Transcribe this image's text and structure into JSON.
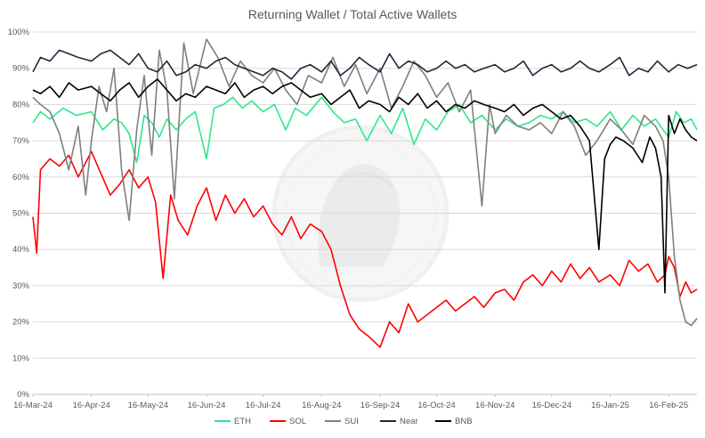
{
  "chart_data": {
    "type": "line",
    "title": "Returning Wallet / Total Active Wallets",
    "xlabel": "",
    "ylabel": "",
    "ylim": [
      0,
      100
    ],
    "y_ticks": [
      "0%",
      "10%",
      "20%",
      "30%",
      "40%",
      "50%",
      "60%",
      "70%",
      "80%",
      "90%",
      "100%"
    ],
    "x_tick_labels": [
      "16-Mar-24",
      "16-Apr-24",
      "16-May-24",
      "16-Jun-24",
      "16-Jul-24",
      "16-Aug-24",
      "16-Sep-24",
      "16-Oct-24",
      "16-Nov-24",
      "16-Dec-24",
      "16-Jan-25",
      "16-Feb-25"
    ],
    "x_tick_dates": [
      "2024-03-16",
      "2024-04-16",
      "2024-05-16",
      "2024-06-16",
      "2024-07-16",
      "2024-08-16",
      "2024-09-16",
      "2024-10-16",
      "2024-11-16",
      "2024-12-16",
      "2025-01-16",
      "2025-02-16"
    ],
    "x_range": [
      "2024-03-16",
      "2025-03-03"
    ],
    "grid": true,
    "legend_position": "bottom",
    "series": [
      {
        "name": "ETH",
        "color": "#2ee88a",
        "x": [
          "2024-03-16",
          "2024-03-20",
          "2024-03-25",
          "2024-04-01",
          "2024-04-08",
          "2024-04-16",
          "2024-04-22",
          "2024-04-28",
          "2024-05-02",
          "2024-05-06",
          "2024-05-10",
          "2024-05-14",
          "2024-05-18",
          "2024-05-22",
          "2024-05-26",
          "2024-05-31",
          "2024-06-05",
          "2024-06-10",
          "2024-06-16",
          "2024-06-20",
          "2024-06-25",
          "2024-06-30",
          "2024-07-05",
          "2024-07-10",
          "2024-07-16",
          "2024-07-22",
          "2024-07-28",
          "2024-08-02",
          "2024-08-08",
          "2024-08-16",
          "2024-08-22",
          "2024-08-28",
          "2024-09-03",
          "2024-09-09",
          "2024-09-16",
          "2024-09-22",
          "2024-09-28",
          "2024-10-04",
          "2024-10-10",
          "2024-10-16",
          "2024-10-22",
          "2024-10-28",
          "2024-11-03",
          "2024-11-09",
          "2024-11-16",
          "2024-11-22",
          "2024-11-28",
          "2024-12-04",
          "2024-12-10",
          "2024-12-16",
          "2024-12-22",
          "2024-12-28",
          "2025-01-03",
          "2025-01-09",
          "2025-01-16",
          "2025-01-22",
          "2025-01-28",
          "2025-02-03",
          "2025-02-09",
          "2025-02-13",
          "2025-02-16",
          "2025-02-20",
          "2025-02-24",
          "2025-02-28",
          "2025-03-03"
        ],
        "values": [
          75,
          78,
          76,
          79,
          77,
          78,
          73,
          76,
          75,
          72,
          64,
          77,
          75,
          71,
          76,
          73,
          76,
          78,
          65,
          79,
          80,
          82,
          79,
          81,
          78,
          80,
          73,
          79,
          77,
          82,
          78,
          75,
          76,
          70,
          77,
          72,
          79,
          69,
          76,
          73,
          78,
          80,
          75,
          77,
          73,
          76,
          74,
          75,
          77,
          76,
          78,
          75,
          76,
          74,
          78,
          73,
          77,
          74,
          76,
          73,
          71,
          78,
          75,
          76,
          73
        ]
      },
      {
        "name": "SOL",
        "color": "#ff0000",
        "x": [
          "2024-03-16",
          "2024-03-18",
          "2024-03-20",
          "2024-03-25",
          "2024-03-30",
          "2024-04-04",
          "2024-04-09",
          "2024-04-16",
          "2024-04-21",
          "2024-04-26",
          "2024-05-01",
          "2024-05-06",
          "2024-05-11",
          "2024-05-16",
          "2024-05-20",
          "2024-05-24",
          "2024-05-28",
          "2024-06-01",
          "2024-06-06",
          "2024-06-11",
          "2024-06-16",
          "2024-06-21",
          "2024-06-26",
          "2024-07-01",
          "2024-07-06",
          "2024-07-11",
          "2024-07-16",
          "2024-07-21",
          "2024-07-26",
          "2024-07-31",
          "2024-08-05",
          "2024-08-10",
          "2024-08-16",
          "2024-08-21",
          "2024-08-26",
          "2024-08-31",
          "2024-09-05",
          "2024-09-10",
          "2024-09-16",
          "2024-09-21",
          "2024-09-26",
          "2024-10-01",
          "2024-10-06",
          "2024-10-11",
          "2024-10-16",
          "2024-10-21",
          "2024-10-26",
          "2024-10-31",
          "2024-11-05",
          "2024-11-10",
          "2024-11-16",
          "2024-11-21",
          "2024-11-26",
          "2024-12-01",
          "2024-12-06",
          "2024-12-11",
          "2024-12-16",
          "2024-12-21",
          "2024-12-26",
          "2024-12-31",
          "2025-01-05",
          "2025-01-10",
          "2025-01-16",
          "2025-01-21",
          "2025-01-26",
          "2025-01-31",
          "2025-02-05",
          "2025-02-10",
          "2025-02-14",
          "2025-02-16",
          "2025-02-19",
          "2025-02-22",
          "2025-02-25",
          "2025-02-28",
          "2025-03-03"
        ],
        "values": [
          49,
          39,
          62,
          65,
          63,
          66,
          60,
          67,
          61,
          55,
          58,
          62,
          57,
          60,
          53,
          32,
          55,
          48,
          44,
          52,
          57,
          48,
          55,
          50,
          54,
          49,
          52,
          47,
          44,
          49,
          43,
          47,
          45,
          40,
          30,
          22,
          18,
          16,
          13,
          20,
          17,
          25,
          20,
          22,
          24,
          26,
          23,
          25,
          27,
          24,
          28,
          29,
          26,
          31,
          33,
          30,
          34,
          31,
          36,
          32,
          35,
          31,
          33,
          30,
          37,
          34,
          36,
          31,
          33,
          38,
          35,
          27,
          31,
          28,
          29
        ]
      },
      {
        "name": "SUI",
        "color": "#7f7f7f",
        "x": [
          "2024-03-16",
          "2024-03-20",
          "2024-03-25",
          "2024-03-30",
          "2024-04-04",
          "2024-04-09",
          "2024-04-13",
          "2024-04-16",
          "2024-04-20",
          "2024-04-24",
          "2024-04-28",
          "2024-05-02",
          "2024-05-06",
          "2024-05-10",
          "2024-05-14",
          "2024-05-18",
          "2024-05-22",
          "2024-05-26",
          "2024-05-30",
          "2024-06-04",
          "2024-06-09",
          "2024-06-16",
          "2024-06-22",
          "2024-06-28",
          "2024-07-04",
          "2024-07-10",
          "2024-07-16",
          "2024-07-22",
          "2024-07-28",
          "2024-08-03",
          "2024-08-09",
          "2024-08-16",
          "2024-08-22",
          "2024-08-28",
          "2024-09-03",
          "2024-09-09",
          "2024-09-16",
          "2024-09-22",
          "2024-09-28",
          "2024-10-04",
          "2024-10-10",
          "2024-10-16",
          "2024-10-22",
          "2024-10-28",
          "2024-11-03",
          "2024-11-09",
          "2024-11-13",
          "2024-11-16",
          "2024-11-22",
          "2024-11-28",
          "2024-12-04",
          "2024-12-10",
          "2024-12-16",
          "2024-12-22",
          "2024-12-28",
          "2025-01-03",
          "2025-01-09",
          "2025-01-16",
          "2025-01-22",
          "2025-01-28",
          "2025-02-03",
          "2025-02-09",
          "2025-02-13",
          "2025-02-16",
          "2025-02-19",
          "2025-02-22",
          "2025-02-25",
          "2025-02-28",
          "2025-03-03"
        ],
        "values": [
          82,
          80,
          78,
          72,
          62,
          74,
          55,
          70,
          85,
          78,
          90,
          62,
          48,
          73,
          88,
          66,
          95,
          84,
          54,
          97,
          83,
          98,
          93,
          85,
          92,
          88,
          86,
          90,
          84,
          80,
          88,
          86,
          93,
          85,
          91,
          83,
          90,
          79,
          85,
          92,
          88,
          82,
          86,
          78,
          84,
          52,
          80,
          72,
          77,
          74,
          73,
          75,
          72,
          78,
          74,
          66,
          70,
          76,
          73,
          69,
          77,
          74,
          70,
          60,
          38,
          26,
          20,
          19,
          21
        ]
      },
      {
        "name": "Near",
        "color": "#1b2a3a",
        "x": [
          "2024-03-16",
          "2024-03-20",
          "2024-03-25",
          "2024-03-30",
          "2024-04-04",
          "2024-04-09",
          "2024-04-16",
          "2024-04-21",
          "2024-04-26",
          "2024-05-01",
          "2024-05-06",
          "2024-05-11",
          "2024-05-16",
          "2024-05-21",
          "2024-05-26",
          "2024-05-31",
          "2024-06-05",
          "2024-06-10",
          "2024-06-16",
          "2024-06-21",
          "2024-06-26",
          "2024-07-01",
          "2024-07-06",
          "2024-07-11",
          "2024-07-16",
          "2024-07-21",
          "2024-07-26",
          "2024-07-31",
          "2024-08-05",
          "2024-08-10",
          "2024-08-16",
          "2024-08-21",
          "2024-08-26",
          "2024-08-31",
          "2024-09-05",
          "2024-09-10",
          "2024-09-16",
          "2024-09-21",
          "2024-09-26",
          "2024-10-01",
          "2024-10-06",
          "2024-10-11",
          "2024-10-16",
          "2024-10-21",
          "2024-10-26",
          "2024-10-31",
          "2024-11-05",
          "2024-11-10",
          "2024-11-16",
          "2024-11-21",
          "2024-11-26",
          "2024-12-01",
          "2024-12-06",
          "2024-12-11",
          "2024-12-16",
          "2024-12-21",
          "2024-12-26",
          "2024-12-31",
          "2025-01-05",
          "2025-01-10",
          "2025-01-16",
          "2025-01-21",
          "2025-01-26",
          "2025-01-31",
          "2025-02-05",
          "2025-02-10",
          "2025-02-16",
          "2025-02-21",
          "2025-02-26",
          "2025-03-03"
        ],
        "values": [
          89,
          93,
          92,
          95,
          94,
          93,
          92,
          94,
          95,
          93,
          91,
          94,
          90,
          89,
          92,
          88,
          89,
          91,
          90,
          92,
          93,
          91,
          90,
          89,
          88,
          90,
          89,
          87,
          90,
          91,
          89,
          92,
          88,
          90,
          93,
          91,
          89,
          94,
          90,
          92,
          91,
          89,
          90,
          92,
          90,
          91,
          89,
          90,
          91,
          89,
          90,
          92,
          88,
          90,
          91,
          89,
          90,
          92,
          90,
          89,
          91,
          93,
          88,
          90,
          89,
          92,
          89,
          91,
          90,
          91
        ]
      },
      {
        "name": "BNB",
        "color": "#000000",
        "x": [
          "2024-03-16",
          "2024-03-20",
          "2024-03-25",
          "2024-03-30",
          "2024-04-04",
          "2024-04-09",
          "2024-04-16",
          "2024-04-21",
          "2024-04-26",
          "2024-05-01",
          "2024-05-06",
          "2024-05-11",
          "2024-05-16",
          "2024-05-21",
          "2024-05-26",
          "2024-05-31",
          "2024-06-05",
          "2024-06-10",
          "2024-06-16",
          "2024-06-21",
          "2024-06-26",
          "2024-07-01",
          "2024-07-06",
          "2024-07-11",
          "2024-07-16",
          "2024-07-21",
          "2024-07-26",
          "2024-07-31",
          "2024-08-05",
          "2024-08-10",
          "2024-08-16",
          "2024-08-21",
          "2024-08-26",
          "2024-08-31",
          "2024-09-05",
          "2024-09-10",
          "2024-09-16",
          "2024-09-21",
          "2024-09-26",
          "2024-10-01",
          "2024-10-06",
          "2024-10-11",
          "2024-10-16",
          "2024-10-21",
          "2024-10-26",
          "2024-10-31",
          "2024-11-05",
          "2024-11-10",
          "2024-11-16",
          "2024-11-21",
          "2024-11-26",
          "2024-12-01",
          "2024-12-06",
          "2024-12-11",
          "2024-12-16",
          "2024-12-21",
          "2024-12-26",
          "2024-12-31",
          "2025-01-05",
          "2025-01-10",
          "2025-01-13",
          "2025-01-16",
          "2025-01-19",
          "2025-01-23",
          "2025-01-28",
          "2025-02-02",
          "2025-02-06",
          "2025-02-09",
          "2025-02-12",
          "2025-02-14",
          "2025-02-16",
          "2025-02-19",
          "2025-02-22",
          "2025-02-25",
          "2025-02-28",
          "2025-03-03"
        ],
        "values": [
          84,
          83,
          85,
          82,
          86,
          84,
          85,
          83,
          81,
          84,
          86,
          82,
          85,
          87,
          84,
          81,
          83,
          82,
          85,
          84,
          83,
          86,
          82,
          84,
          85,
          83,
          85,
          86,
          84,
          82,
          83,
          80,
          82,
          84,
          79,
          81,
          80,
          78,
          82,
          80,
          83,
          79,
          81,
          78,
          80,
          79,
          81,
          80,
          79,
          78,
          80,
          77,
          79,
          80,
          78,
          76,
          77,
          74,
          70,
          40,
          65,
          69,
          71,
          70,
          68,
          64,
          71,
          68,
          60,
          28,
          77,
          72,
          76,
          73,
          71,
          70
        ]
      }
    ]
  }
}
